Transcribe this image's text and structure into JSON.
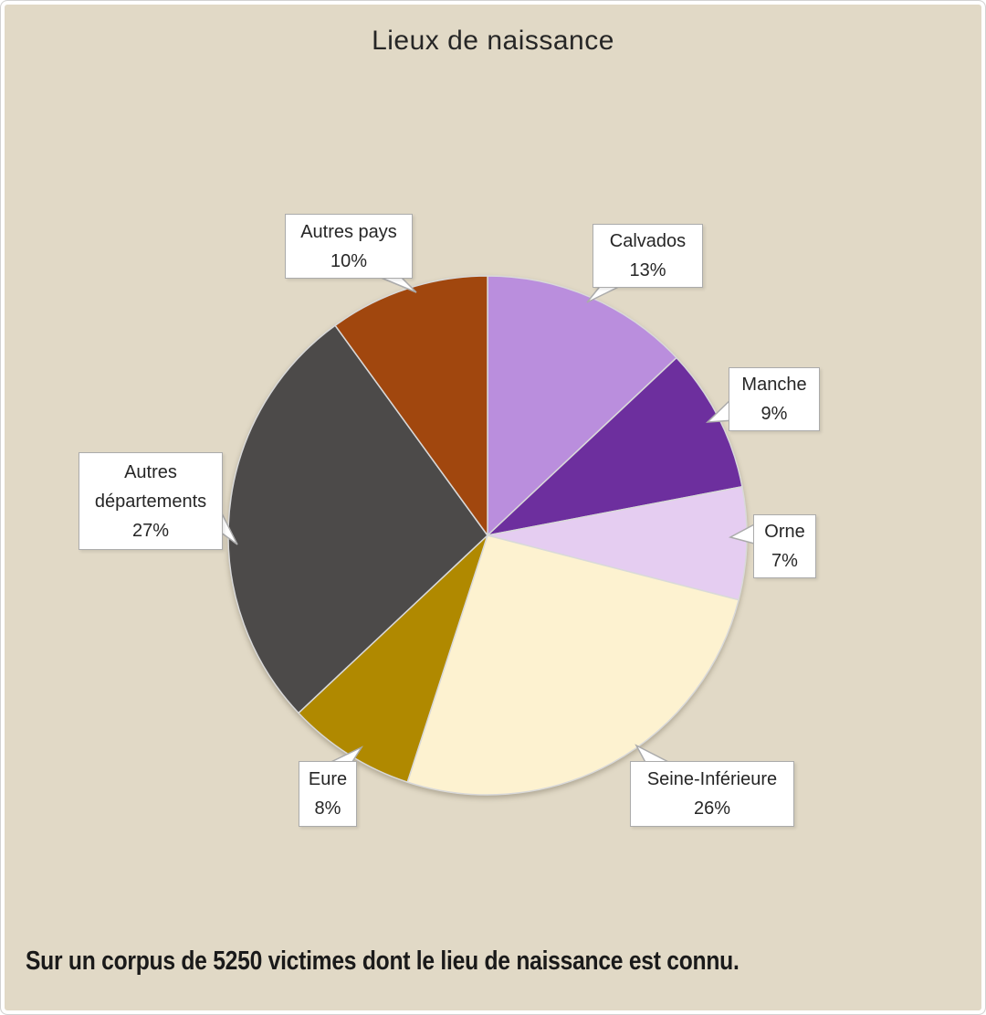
{
  "title": "Lieux de naissance",
  "caption": "Sur un corpus de 5250 victimes dont le lieu de naissance est connu.",
  "colors": {
    "background": "#e1d9c6",
    "frame_border": "#d2d2d2",
    "callout_background": "#ffffff",
    "callout_border": "#ababab",
    "slice_separator": "#d9d9d9",
    "text": "#262626"
  },
  "chart_data": {
    "type": "pie",
    "title": "Lieux de naissance",
    "note": "Sur un corpus de 5250 victimes dont le lieu de naissance est connu.",
    "start_angle_deg": 0,
    "direction": "clockwise",
    "label_style": "callout-boxes",
    "legend_position": "none",
    "slices": [
      {
        "label": "Calvados",
        "value": 13,
        "pct_label": "13%",
        "color": "#ba8edd"
      },
      {
        "label": "Manche",
        "value": 9,
        "pct_label": "9%",
        "color": "#6d2f9e"
      },
      {
        "label": "Orne",
        "value": 7,
        "pct_label": "7%",
        "color": "#e5cdf1"
      },
      {
        "label": "Seine-Inférieure",
        "value": 26,
        "pct_label": "26%",
        "color": "#fdf2d0"
      },
      {
        "label": "Eure",
        "value": 8,
        "pct_label": "8%",
        "color": "#b08900"
      },
      {
        "label": "Autres départements",
        "value": 27,
        "pct_label": "27%",
        "color": "#4c4a49"
      },
      {
        "label": "Autres pays",
        "value": 10,
        "pct_label": "10%",
        "color": "#a1470e"
      }
    ]
  }
}
